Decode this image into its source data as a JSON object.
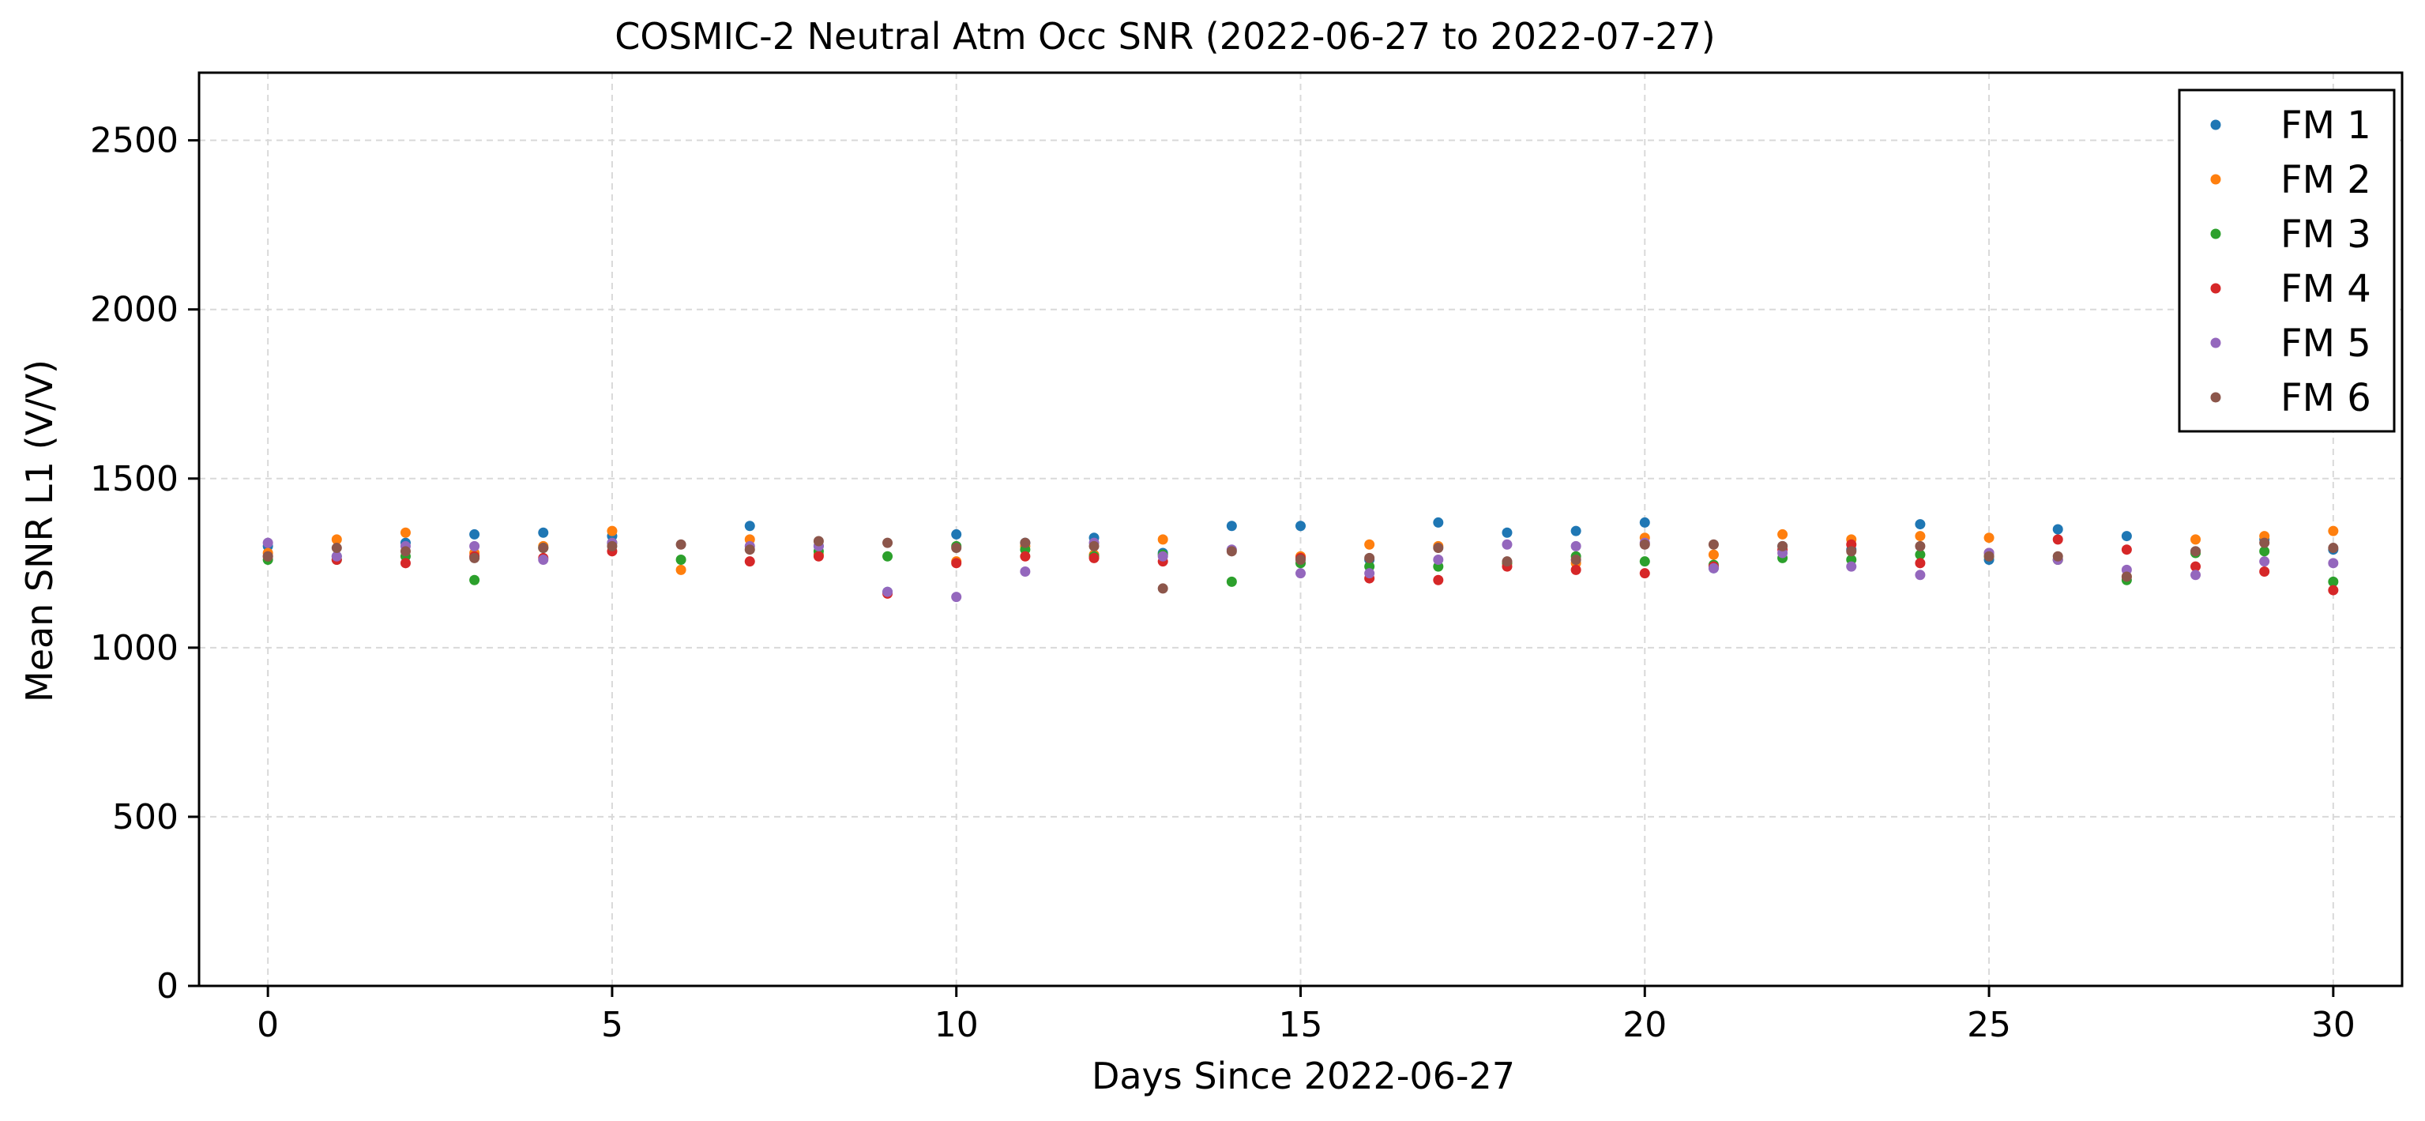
{
  "chart_data": {
    "type": "scatter",
    "title": "COSMIC-2 Neutral Atm Occ SNR (2022-06-27 to 2022-07-27)",
    "xlabel": "Days Since 2022-06-27",
    "ylabel": "Mean SNR L1 (V/V)",
    "xlim": [
      -1,
      31
    ],
    "ylim": [
      0,
      2700
    ],
    "xticks": [
      0,
      5,
      10,
      15,
      20,
      25,
      30
    ],
    "yticks": [
      0,
      500,
      1000,
      1500,
      2000,
      2500
    ],
    "grid": true,
    "legend_position": "top-right",
    "x": [
      0,
      1,
      2,
      3,
      4,
      5,
      6,
      7,
      8,
      9,
      10,
      11,
      12,
      13,
      14,
      15,
      16,
      17,
      18,
      19,
      20,
      21,
      22,
      23,
      24,
      25,
      26,
      27,
      28,
      29,
      30
    ],
    "series": [
      {
        "name": "FM 1",
        "color": "#1f77b4",
        "values": [
          1300,
          1270,
          1310,
          1335,
          1340,
          1330,
          null,
          1360,
          1300,
          1165,
          1335,
          1310,
          1325,
          1280,
          1360,
          1360,
          1260,
          1370,
          1340,
          1345,
          1370,
          1235,
          1300,
          1290,
          1365,
          1260,
          1350,
          1330,
          1285,
          1320,
          1290
        ]
      },
      {
        "name": "FM 2",
        "color": "#ff7f0e",
        "values": [
          1280,
          1320,
          1340,
          1280,
          1300,
          1345,
          1230,
          1320,
          1275,
          null,
          1255,
          1300,
          1275,
          1320,
          null,
          1270,
          1305,
          1300,
          1250,
          1250,
          1325,
          1275,
          1335,
          1320,
          1330,
          1325,
          1260,
          1210,
          1320,
          1330,
          1345
        ]
      },
      {
        "name": "FM 3",
        "color": "#2ca02c",
        "values": [
          1260,
          1260,
          1270,
          1200,
          1295,
          1310,
          1260,
          null,
          1285,
          1270,
          1300,
          1290,
          1270,
          1275,
          1195,
          1250,
          1240,
          1240,
          1250,
          1270,
          1255,
          1245,
          1265,
          1260,
          1275,
          1270,
          1260,
          1200,
          1280,
          1285,
          1195
        ]
      },
      {
        "name": "FM 4",
        "color": "#d62728",
        "values": [
          1270,
          1260,
          1250,
          1270,
          1265,
          1285,
          null,
          1255,
          1270,
          1160,
          1250,
          1270,
          1265,
          1255,
          null,
          1265,
          1205,
          1200,
          1240,
          1230,
          1220,
          1240,
          1290,
          1305,
          1250,
          1280,
          1320,
          1290,
          1240,
          1225,
          1170
        ]
      },
      {
        "name": "FM 5",
        "color": "#9467bd",
        "values": [
          1310,
          1270,
          1300,
          1300,
          1260,
          1310,
          null,
          1300,
          1300,
          1165,
          1150,
          1225,
          1310,
          1270,
          1290,
          1220,
          1220,
          1260,
          1305,
          1300,
          1310,
          1235,
          1280,
          1240,
          1215,
          1280,
          1260,
          1230,
          1215,
          1255,
          1250
        ]
      },
      {
        "name": "FM 6",
        "color": "#8c564b",
        "values": [
          1270,
          1295,
          1285,
          1265,
          1295,
          1300,
          1305,
          1290,
          1315,
          1310,
          1295,
          1310,
          1300,
          1175,
          1285,
          1260,
          1265,
          1295,
          1255,
          1260,
          1305,
          1305,
          1300,
          1285,
          1300,
          1270,
          1270,
          1210,
          1285,
          1310,
          1295
        ]
      }
    ]
  }
}
